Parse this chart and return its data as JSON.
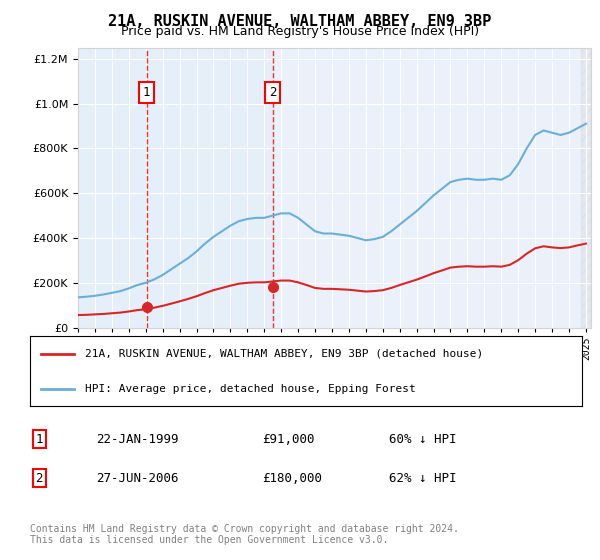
{
  "title": "21A, RUSKIN AVENUE, WALTHAM ABBEY, EN9 3BP",
  "subtitle": "Price paid vs. HM Land Registry's House Price Index (HPI)",
  "legend_line1": "21A, RUSKIN AVENUE, WALTHAM ABBEY, EN9 3BP (detached house)",
  "legend_line2": "HPI: Average price, detached house, Epping Forest",
  "sale1_label": "1",
  "sale1_date": "22-JAN-1999",
  "sale1_price": "£91,000",
  "sale1_hpi": "60% ↓ HPI",
  "sale1_year": 1999.06,
  "sale1_value": 91000,
  "sale2_label": "2",
  "sale2_date": "27-JUN-2006",
  "sale2_price": "£180,000",
  "sale2_hpi": "62% ↓ HPI",
  "sale2_year": 2006.49,
  "sale2_value": 180000,
  "copyright_text": "Contains HM Land Registry data © Crown copyright and database right 2024.\nThis data is licensed under the Open Government Licence v3.0.",
  "hpi_color": "#6baed6",
  "price_color": "#d62728",
  "background_color": "#ffffff",
  "plot_bg_color": "#eaf1fb",
  "grid_color": "#ffffff",
  "ylim_max": 1250000,
  "ylim_min": 0
}
